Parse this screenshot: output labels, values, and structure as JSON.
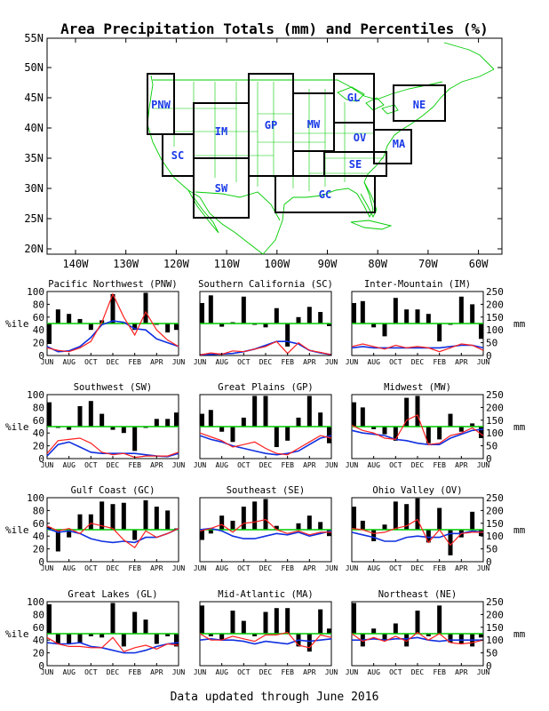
{
  "title": "Area Precipitation Totals (mm) and Percentiles (%)",
  "footer": "Data updated through June 2016",
  "colors": {
    "bars": "#000000",
    "total_line": "#ff2020",
    "normal_line": "#1030e0",
    "median_line": "#00cc00",
    "map_lines": "#00cc00",
    "region_labels": "#1a3ae8"
  },
  "map": {
    "lat_labels": [
      "55N",
      "50N",
      "45N",
      "40N",
      "35N",
      "30N",
      "25N",
      "20N"
    ],
    "lon_labels": [
      "140W",
      "130W",
      "120W",
      "110W",
      "100W",
      "90W",
      "80W",
      "70W",
      "60W"
    ],
    "regions": [
      {
        "label": "PNW"
      },
      {
        "label": "SC"
      },
      {
        "label": "IM"
      },
      {
        "label": "SW"
      },
      {
        "label": "GP"
      },
      {
        "label": "MW"
      },
      {
        "label": "GL"
      },
      {
        "label": "OV"
      },
      {
        "label": "SE"
      },
      {
        "label": "GC"
      },
      {
        "label": "MA"
      },
      {
        "label": "NE"
      }
    ]
  },
  "panel_axis": {
    "left_label": "%ile",
    "right_label": "mm",
    "left_ticks": [
      "0",
      "20",
      "40",
      "60",
      "80",
      "100"
    ],
    "right_ticks": [
      "0",
      "50",
      "100",
      "150",
      "200",
      "250"
    ],
    "month_labels": [
      "JUN",
      "AUG",
      "OCT",
      "DEC",
      "FEB",
      "APR",
      "JUN"
    ]
  },
  "chart_data": [
    {
      "type": "bar",
      "title": "Pacific Northwest (PNW)",
      "months": [
        "JUN",
        "JUL",
        "AUG",
        "SEP",
        "OCT",
        "NOV",
        "DEC",
        "JAN",
        "FEB",
        "MAR",
        "APR",
        "MAY",
        "JUN"
      ],
      "ylim_left": [
        0,
        100
      ],
      "ylim_right": [
        0,
        250
      ],
      "percentile": [
        18,
        72,
        65,
        57,
        40,
        55,
        96,
        52,
        40,
        98,
        48,
        36,
        40
      ],
      "total_mm": [
        30,
        20,
        15,
        30,
        55,
        130,
        240,
        150,
        80,
        170,
        100,
        60,
        35
      ],
      "normal_mm": [
        35,
        15,
        18,
        35,
        70,
        120,
        135,
        130,
        105,
        100,
        65,
        50,
        35
      ],
      "median_pct": 50
    },
    {
      "type": "bar",
      "title": "Southern California (SC)",
      "months": [
        "JUN",
        "JUL",
        "AUG",
        "SEP",
        "OCT",
        "NOV",
        "DEC",
        "JAN",
        "FEB",
        "MAR",
        "APR",
        "MAY",
        "JUN"
      ],
      "ylim_left": [
        0,
        100
      ],
      "ylim_right": [
        0,
        250
      ],
      "percentile": [
        82,
        94,
        45,
        52,
        92,
        48,
        44,
        74,
        14,
        60,
        76,
        68,
        46
      ],
      "total_mm": [
        2,
        10,
        5,
        18,
        15,
        25,
        35,
        55,
        8,
        50,
        20,
        12,
        3
      ],
      "normal_mm": [
        3,
        4,
        6,
        8,
        15,
        25,
        40,
        55,
        55,
        45,
        20,
        10,
        3
      ],
      "median_pct": 50
    },
    {
      "type": "bar",
      "title": "Inter-Mountain (IM)",
      "months": [
        "JUN",
        "JUL",
        "AUG",
        "SEP",
        "OCT",
        "NOV",
        "DEC",
        "JAN",
        "FEB",
        "MAR",
        "APR",
        "MAY",
        "JUN"
      ],
      "ylim_left": [
        0,
        100
      ],
      "ylim_right": [
        0,
        250
      ],
      "percentile": [
        82,
        85,
        44,
        30,
        90,
        72,
        72,
        65,
        22,
        48,
        92,
        80,
        26
      ],
      "total_mm": [
        35,
        45,
        35,
        25,
        40,
        30,
        35,
        30,
        15,
        30,
        45,
        40,
        20
      ],
      "normal_mm": [
        30,
        35,
        30,
        30,
        30,
        30,
        30,
        30,
        30,
        35,
        40,
        40,
        30
      ],
      "median_pct": 50
    },
    {
      "type": "bar",
      "title": "Southwest (SW)",
      "months": [
        "JUN",
        "JUL",
        "AUG",
        "SEP",
        "OCT",
        "NOV",
        "DEC",
        "JAN",
        "FEB",
        "MAR",
        "APR",
        "MAY",
        "JUN"
      ],
      "ylim_left": [
        0,
        100
      ],
      "ylim_right": [
        0,
        250
      ],
      "percentile": [
        88,
        48,
        45,
        82,
        90,
        70,
        45,
        40,
        12,
        48,
        62,
        62,
        72
      ],
      "total_mm": [
        20,
        70,
        75,
        80,
        60,
        25,
        15,
        20,
        5,
        10,
        10,
        10,
        25
      ],
      "normal_mm": [
        10,
        55,
        65,
        45,
        25,
        20,
        20,
        20,
        20,
        15,
        10,
        8,
        20
      ],
      "median_pct": 50
    },
    {
      "type": "bar",
      "title": "Great Plains (GP)",
      "months": [
        "JUN",
        "JUL",
        "AUG",
        "SEP",
        "OCT",
        "NOV",
        "DEC",
        "JAN",
        "FEB",
        "MAR",
        "APR",
        "MAY",
        "JUN"
      ],
      "ylim_left": [
        0,
        100
      ],
      "ylim_right": [
        0,
        250
      ],
      "percentile": [
        70,
        76,
        42,
        26,
        64,
        98,
        98,
        18,
        28,
        64,
        98,
        72,
        24
      ],
      "total_mm": [
        100,
        85,
        70,
        45,
        55,
        65,
        40,
        20,
        15,
        40,
        65,
        90,
        80
      ],
      "normal_mm": [
        90,
        75,
        65,
        50,
        40,
        30,
        20,
        15,
        20,
        30,
        55,
        80,
        90
      ],
      "median_pct": 50
    },
    {
      "type": "bar",
      "title": "Midwest (MW)",
      "months": [
        "JUN",
        "JUL",
        "AUG",
        "SEP",
        "OCT",
        "NOV",
        "DEC",
        "JAN",
        "FEB",
        "MAR",
        "APR",
        "MAY",
        "JUN"
      ],
      "ylim_left": [
        0,
        100
      ],
      "ylim_right": [
        0,
        250
      ],
      "percentile": [
        88,
        80,
        46,
        38,
        28,
        95,
        98,
        24,
        30,
        70,
        42,
        55,
        32
      ],
      "total_mm": [
        130,
        110,
        100,
        80,
        75,
        150,
        170,
        55,
        60,
        90,
        100,
        120,
        90
      ],
      "normal_mm": [
        110,
        100,
        95,
        90,
        75,
        70,
        60,
        55,
        55,
        80,
        95,
        110,
        115
      ],
      "median_pct": 50
    },
    {
      "type": "bar",
      "title": "Gulf Coast (GC)",
      "months": [
        "JUN",
        "JUL",
        "AUG",
        "SEP",
        "OCT",
        "NOV",
        "DEC",
        "JAN",
        "FEB",
        "MAR",
        "APR",
        "MAY",
        "JUN"
      ],
      "ylim_left": [
        0,
        100
      ],
      "ylim_right": [
        0,
        250
      ],
      "percentile": [
        54,
        16,
        38,
        74,
        74,
        94,
        90,
        92,
        34,
        96,
        86,
        80,
        52
      ],
      "total_mm": [
        140,
        120,
        130,
        110,
        150,
        140,
        130,
        85,
        55,
        120,
        95,
        110,
        130
      ],
      "normal_mm": [
        130,
        115,
        120,
        110,
        90,
        80,
        75,
        80,
        75,
        95,
        95,
        110,
        130
      ],
      "median_pct": 50
    },
    {
      "type": "bar",
      "title": "Southeast (SE)",
      "months": [
        "JUN",
        "JUL",
        "AUG",
        "SEP",
        "OCT",
        "NOV",
        "DEC",
        "JAN",
        "FEB",
        "MAR",
        "APR",
        "MAY",
        "JUN"
      ],
      "ylim_left": [
        0,
        100
      ],
      "ylim_right": [
        0,
        250
      ],
      "percentile": [
        34,
        44,
        72,
        64,
        86,
        94,
        98,
        56,
        50,
        60,
        72,
        62,
        40
      ],
      "total_mm": [
        120,
        130,
        145,
        115,
        150,
        155,
        165,
        125,
        110,
        120,
        105,
        115,
        115
      ],
      "normal_mm": [
        125,
        130,
        120,
        100,
        90,
        90,
        100,
        110,
        105,
        115,
        100,
        110,
        120
      ],
      "median_pct": 50
    },
    {
      "type": "bar",
      "title": "Ohio Valley (OV)",
      "months": [
        "JUN",
        "JUL",
        "AUG",
        "SEP",
        "OCT",
        "NOV",
        "DEC",
        "JAN",
        "FEB",
        "MAR",
        "APR",
        "MAY",
        "JUN"
      ],
      "ylim_left": [
        0,
        100
      ],
      "ylim_right": [
        0,
        250
      ],
      "percentile": [
        86,
        64,
        32,
        58,
        94,
        90,
        99,
        30,
        84,
        10,
        38,
        78,
        40
      ],
      "total_mm": [
        130,
        125,
        110,
        115,
        130,
        140,
        165,
        75,
        125,
        65,
        110,
        115,
        115
      ],
      "normal_mm": [
        115,
        105,
        95,
        80,
        80,
        95,
        100,
        95,
        95,
        110,
        110,
        120,
        115
      ],
      "median_pct": 50
    },
    {
      "type": "bar",
      "title": "Great Lakes (GL)",
      "months": [
        "JUN",
        "JUL",
        "AUG",
        "SEP",
        "OCT",
        "NOV",
        "DEC",
        "JAN",
        "FEB",
        "MAR",
        "APR",
        "MAY",
        "JUN"
      ],
      "ylim_left": [
        0,
        100
      ],
      "ylim_right": [
        0,
        250
      ],
      "percentile": [
        96,
        34,
        34,
        36,
        46,
        44,
        98,
        30,
        84,
        72,
        34,
        46,
        30
      ],
      "total_mm": [
        110,
        85,
        75,
        75,
        70,
        70,
        110,
        55,
        70,
        80,
        65,
        85,
        80
      ],
      "normal_mm": [
        90,
        85,
        85,
        90,
        75,
        70,
        60,
        50,
        50,
        60,
        75,
        85,
        90
      ],
      "median_pct": 50
    },
    {
      "type": "bar",
      "title": "Mid-Atlantic (MA)",
      "months": [
        "JUN",
        "JUL",
        "AUG",
        "SEP",
        "OCT",
        "NOV",
        "DEC",
        "JAN",
        "FEB",
        "MAR",
        "APR",
        "MAY",
        "JUN"
      ],
      "ylim_left": [
        0,
        100
      ],
      "ylim_right": [
        0,
        250
      ],
      "percentile": [
        94,
        46,
        40,
        86,
        70,
        46,
        84,
        90,
        90,
        30,
        22,
        88,
        58
      ],
      "total_mm": [
        125,
        100,
        100,
        115,
        105,
        95,
        120,
        120,
        130,
        80,
        70,
        120,
        110
      ],
      "normal_mm": [
        100,
        105,
        100,
        100,
        95,
        85,
        95,
        90,
        85,
        100,
        95,
        100,
        105
      ],
      "median_pct": 50
    },
    {
      "type": "bar",
      "title": "Northeast (NE)",
      "months": [
        "JUN",
        "JUL",
        "AUG",
        "SEP",
        "OCT",
        "NOV",
        "DEC",
        "JAN",
        "FEB",
        "MAR",
        "APR",
        "MAY",
        "JUN"
      ],
      "ylim_left": [
        0,
        100
      ],
      "ylim_right": [
        0,
        250
      ],
      "percentile": [
        98,
        30,
        58,
        40,
        66,
        30,
        86,
        46,
        94,
        36,
        34,
        30,
        44
      ],
      "total_mm": [
        125,
        95,
        110,
        95,
        115,
        95,
        130,
        100,
        125,
        90,
        85,
        90,
        100
      ],
      "normal_mm": [
        100,
        100,
        105,
        100,
        105,
        105,
        110,
        100,
        95,
        100,
        100,
        100,
        100
      ],
      "median_pct": 50
    }
  ]
}
